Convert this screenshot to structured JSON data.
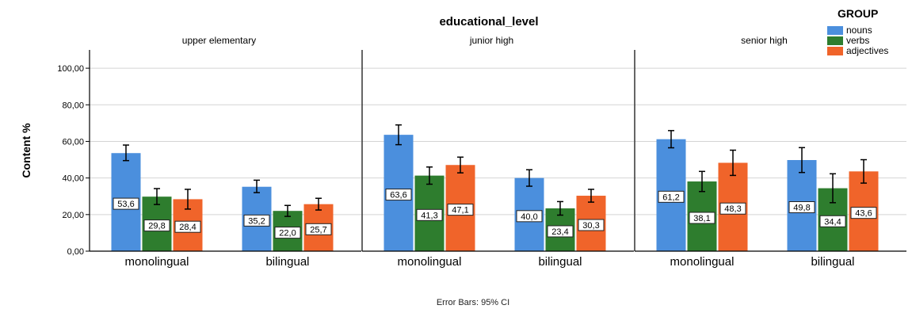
{
  "chart_data": {
    "type": "bar",
    "title": "educational_level",
    "ylabel": "Content %",
    "footer": "Error Bars: 95% CI",
    "ylim": [
      0,
      110
    ],
    "yticks": [
      "0,00",
      "20,00",
      "40,00",
      "60,00",
      "80,00",
      "100,00"
    ],
    "ytick_values": [
      0,
      20,
      40,
      60,
      80,
      100
    ],
    "categories": [
      "monolingual",
      "bilingual"
    ],
    "grid": true,
    "legend": {
      "title": "GROUP",
      "position": "top-right",
      "items": [
        {
          "name": "nouns",
          "color": "#4b8fdd"
        },
        {
          "name": "verbs",
          "color": "#2e7d2e"
        },
        {
          "name": "adjectives",
          "color": "#f0642a"
        }
      ]
    },
    "panels": [
      {
        "name": "upper elementary",
        "series": [
          {
            "name": "nouns",
            "values": [
              53.6,
              35.2
            ],
            "labels": [
              "53,6",
              "35,2"
            ],
            "ci_low": [
              49.5,
              32.0
            ],
            "ci_high": [
              58.0,
              38.8
            ]
          },
          {
            "name": "verbs",
            "values": [
              29.8,
              22.0
            ],
            "labels": [
              "29,8",
              "22,0"
            ],
            "ci_low": [
              25.5,
              19.0
            ],
            "ci_high": [
              34.2,
              25.0
            ]
          },
          {
            "name": "adjectives",
            "values": [
              28.4,
              25.7
            ],
            "labels": [
              "28,4",
              "25,7"
            ],
            "ci_low": [
              23.0,
              22.5
            ],
            "ci_high": [
              33.8,
              28.9
            ]
          }
        ]
      },
      {
        "name": "junior high",
        "series": [
          {
            "name": "nouns",
            "values": [
              63.6,
              40.0
            ],
            "labels": [
              "63,6",
              "40,0"
            ],
            "ci_low": [
              58.2,
              35.5
            ],
            "ci_high": [
              69.0,
              44.5
            ]
          },
          {
            "name": "verbs",
            "values": [
              41.3,
              23.4
            ],
            "labels": [
              "41,3",
              "23,4"
            ],
            "ci_low": [
              36.6,
              19.7
            ],
            "ci_high": [
              46.0,
              27.1
            ]
          },
          {
            "name": "adjectives",
            "values": [
              47.1,
              30.3
            ],
            "labels": [
              "47,1",
              "30,3"
            ],
            "ci_low": [
              42.8,
              26.8
            ],
            "ci_high": [
              51.4,
              33.8
            ]
          }
        ]
      },
      {
        "name": "senior high",
        "series": [
          {
            "name": "nouns",
            "values": [
              61.2,
              49.8
            ],
            "labels": [
              "61,2",
              "49,8"
            ],
            "ci_low": [
              56.5,
              43.0
            ],
            "ci_high": [
              65.9,
              56.6
            ]
          },
          {
            "name": "verbs",
            "values": [
              38.1,
              34.4
            ],
            "labels": [
              "38,1",
              "34,4"
            ],
            "ci_low": [
              32.6,
              26.5
            ],
            "ci_high": [
              43.6,
              42.3
            ]
          },
          {
            "name": "adjectives",
            "values": [
              48.3,
              43.6
            ],
            "labels": [
              "48,3",
              "43,6"
            ],
            "ci_low": [
              41.4,
              37.2
            ],
            "ci_high": [
              55.2,
              50.0
            ]
          }
        ]
      }
    ]
  }
}
